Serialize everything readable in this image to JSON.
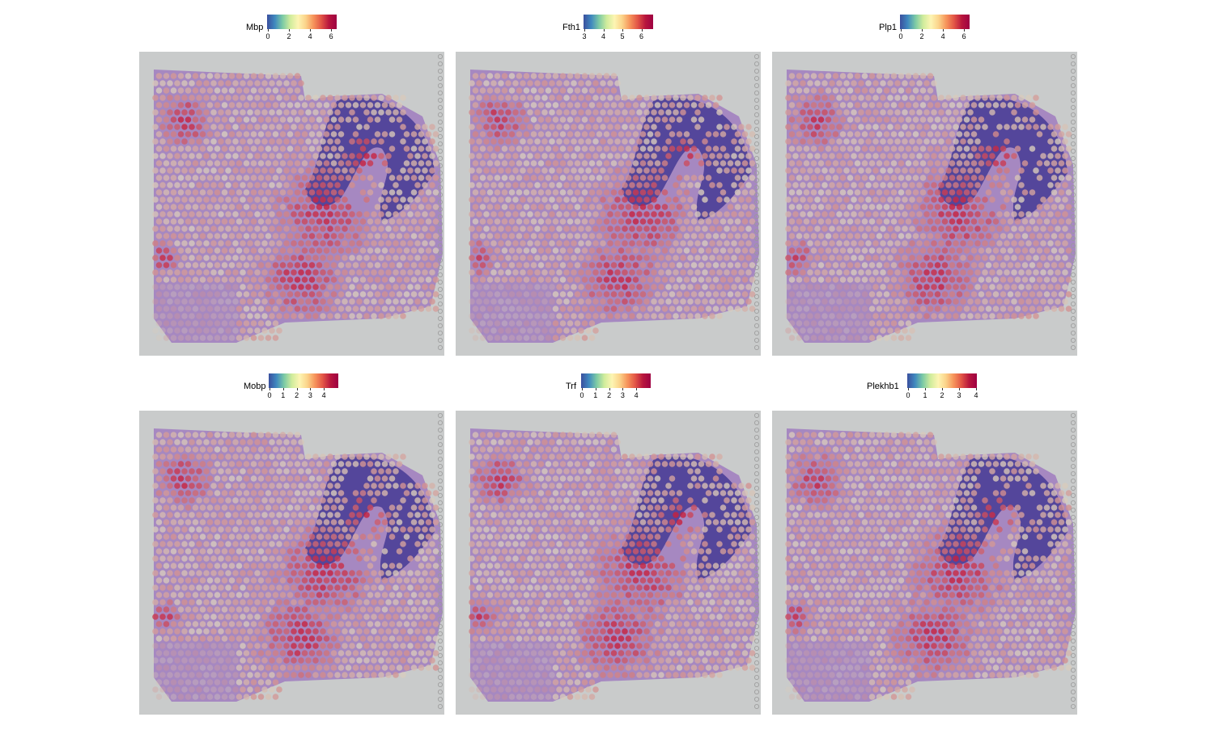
{
  "panels": [
    {
      "gene": "Mbp",
      "ticks": [
        "0",
        "2",
        "4",
        "6"
      ],
      "tick_pos": [
        0.0,
        0.31,
        0.62,
        0.93
      ]
    },
    {
      "gene": "Fth1",
      "ticks": [
        "3",
        "4",
        "5",
        "6"
      ],
      "tick_pos": [
        0.0,
        0.28,
        0.56,
        0.84
      ]
    },
    {
      "gene": "Plp1",
      "ticks": [
        "0",
        "2",
        "4",
        "6"
      ],
      "tick_pos": [
        0.0,
        0.31,
        0.62,
        0.93
      ]
    },
    {
      "gene": "Mobp",
      "ticks": [
        "0",
        "1",
        "2",
        "3",
        "4"
      ],
      "tick_pos": [
        0.0,
        0.2,
        0.4,
        0.6,
        0.8
      ]
    },
    {
      "gene": "Trf",
      "ticks": [
        "0",
        "1",
        "2",
        "3",
        "4"
      ],
      "tick_pos": [
        0.0,
        0.2,
        0.4,
        0.6,
        0.8
      ]
    },
    {
      "gene": "Plekhb1",
      "ticks": [
        "0",
        "1",
        "2",
        "3",
        "4"
      ],
      "tick_pos": [
        0.0,
        0.25,
        0.5,
        0.75,
        1.0
      ]
    }
  ],
  "colors": {
    "background": "#c9cbcb",
    "tissue_purple": "#a07cc0",
    "cerebellum_granular": "#4b3f97",
    "spot_low": "#d8cdbe",
    "spot_high": "#c8213d"
  }
}
